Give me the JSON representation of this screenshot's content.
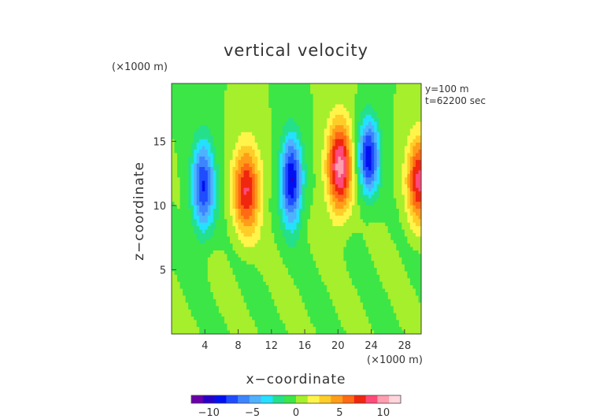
{
  "chart_data": {
    "type": "heatmap",
    "title": "vertical velocity",
    "xlabel": "x−coordinate",
    "ylabel": "z−coordinate",
    "x_unit": "(×1000 m)",
    "y_unit": "(×1000 m)",
    "xlim": [
      0,
      30
    ],
    "ylim": [
      0,
      19.5
    ],
    "x_ticks": [
      4,
      8,
      12,
      16,
      20,
      24,
      28
    ],
    "y_ticks": [
      5,
      10,
      15
    ],
    "x_tick_labels": [
      "4",
      "8",
      "12",
      "16",
      "20",
      "24",
      "28"
    ],
    "y_tick_labels": [
      "5",
      "10",
      "15"
    ],
    "annotations": [
      "y=100 m",
      "t=62200 sec"
    ],
    "colorbar": {
      "range": [
        -12,
        12
      ],
      "ticks": [
        -10,
        -5,
        0,
        5,
        10
      ],
      "tick_labels": [
        "−10",
        "−5",
        "0",
        "5",
        "10"
      ],
      "colors": [
        "#6a00a8",
        "#2a00c8",
        "#0010f0",
        "#1f4cff",
        "#3d84ff",
        "#4fb2ff",
        "#25e0ff",
        "#25e08a",
        "#3ce646",
        "#a6ef2c",
        "#fff44a",
        "#ffcd28",
        "#ff9d1a",
        "#ff6a14",
        "#f0260f",
        "#ff4a7a",
        "#ff9eb0",
        "#ffd6dc"
      ]
    },
    "features": [
      {
        "x": 3.8,
        "z": 11.5,
        "sx": 1.4,
        "sz": 3.6,
        "amp": -8.0
      },
      {
        "x": 9.0,
        "z": 11.2,
        "sx": 1.6,
        "sz": 3.4,
        "amp": 8.0
      },
      {
        "x": 14.4,
        "z": 12.0,
        "sx": 1.3,
        "sz": 3.4,
        "amp": -9.5
      },
      {
        "x": 20.2,
        "z": 13.0,
        "sx": 1.5,
        "sz": 3.5,
        "amp": 10.0
      },
      {
        "x": 23.7,
        "z": 13.8,
        "sx": 1.3,
        "sz": 2.9,
        "amp": -9.0
      },
      {
        "x": 29.8,
        "z": 12.0,
        "sx": 1.5,
        "sz": 3.3,
        "amp": 8.5
      }
    ]
  }
}
